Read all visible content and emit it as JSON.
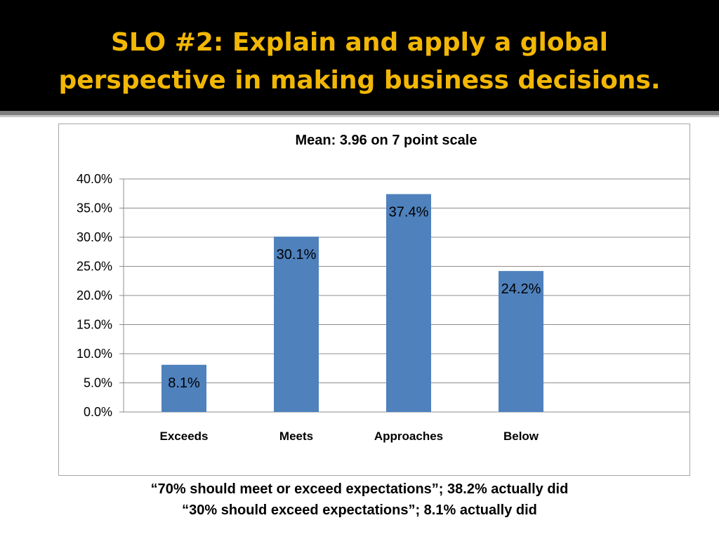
{
  "slide": {
    "title_line1": "SLO #2: Explain and apply a global",
    "title_line2": "perspective in making business decisions.",
    "title_color": "#f2b705",
    "band_color": "#000000"
  },
  "chart_data": {
    "type": "bar",
    "title": "Mean: 3.96 on 7 point scale",
    "categories": [
      "Exceeds",
      "Meets",
      "Approaches",
      "Below"
    ],
    "values": [
      8.1,
      30.1,
      37.4,
      24.2
    ],
    "data_labels": [
      "8.1%",
      "30.1%",
      "37.4%",
      "24.2%"
    ],
    "ylim": [
      0,
      40
    ],
    "y_ticks": [
      "0.0%",
      "5.0%",
      "10.0%",
      "15.0%",
      "20.0%",
      "25.0%",
      "30.0%",
      "35.0%",
      "40.0%"
    ],
    "y_tick_values": [
      0,
      5,
      10,
      15,
      20,
      25,
      30,
      35,
      40
    ],
    "grid": true,
    "legend": "none",
    "bar_color": "#4f81bd"
  },
  "footnotes": {
    "line1": "“70% should meet or exceed expectations”; 38.2% actually did",
    "line2": "“30% should exceed expectations”; 8.1% actually did"
  }
}
